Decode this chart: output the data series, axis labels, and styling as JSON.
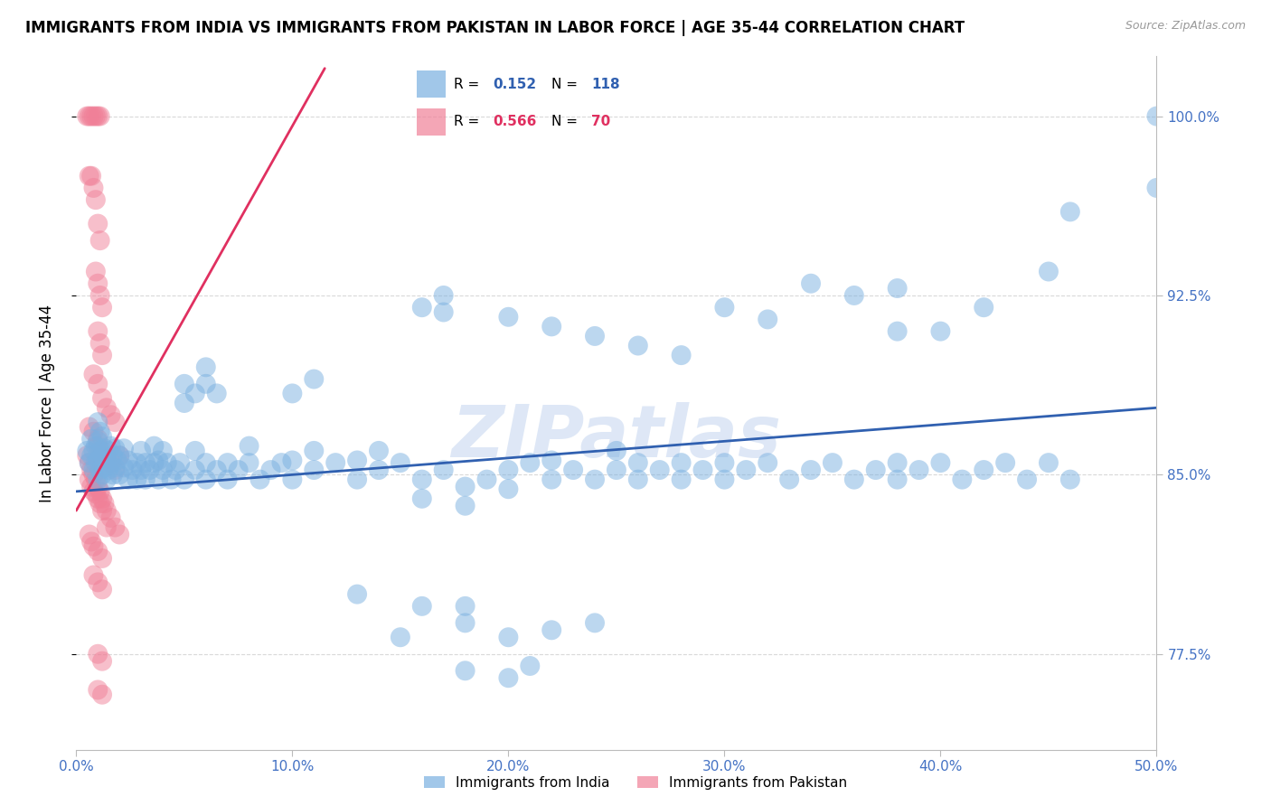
{
  "title": "IMMIGRANTS FROM INDIA VS IMMIGRANTS FROM PAKISTAN IN LABOR FORCE | AGE 35-44 CORRELATION CHART",
  "source": "Source: ZipAtlas.com",
  "ylabel": "In Labor Force | Age 35-44",
  "xlim": [
    0.0,
    0.5
  ],
  "ylim": [
    0.735,
    1.025
  ],
  "xticks": [
    0.0,
    0.1,
    0.2,
    0.3,
    0.4,
    0.5
  ],
  "xticklabels": [
    "0.0%",
    "10.0%",
    "20.0%",
    "30.0%",
    "40.0%",
    "50.0%"
  ],
  "yticks": [
    0.775,
    0.85,
    0.925,
    1.0
  ],
  "yticklabels": [
    "77.5%",
    "85.0%",
    "92.5%",
    "100.0%"
  ],
  "ytick_color": "#4472c4",
  "xtick_color": "#4472c4",
  "grid_color": "#d0d0d0",
  "background_color": "#ffffff",
  "watermark": "ZIPatlas",
  "watermark_color": "#c8d8f0",
  "legend_india_label": "Immigrants from India",
  "legend_pakistan_label": "Immigrants from Pakistan",
  "india_color": "#7ab0e0",
  "pakistan_color": "#f08098",
  "india_r": 0.152,
  "india_n": 118,
  "pakistan_r": 0.566,
  "pakistan_n": 70,
  "india_line_color": "#3060b0",
  "pakistan_line_color": "#e03060",
  "india_line_x": [
    0.0,
    0.5
  ],
  "india_line_y": [
    0.843,
    0.878
  ],
  "pakistan_line_x": [
    0.0,
    0.12
  ],
  "pakistan_line_y": [
    0.835,
    1.02
  ],
  "india_points": [
    [
      0.005,
      0.86
    ],
    [
      0.006,
      0.855
    ],
    [
      0.007,
      0.858
    ],
    [
      0.007,
      0.865
    ],
    [
      0.008,
      0.852
    ],
    [
      0.008,
      0.86
    ],
    [
      0.009,
      0.855
    ],
    [
      0.009,
      0.862
    ],
    [
      0.01,
      0.848
    ],
    [
      0.01,
      0.856
    ],
    [
      0.01,
      0.864
    ],
    [
      0.01,
      0.872
    ],
    [
      0.011,
      0.852
    ],
    [
      0.011,
      0.86
    ],
    [
      0.011,
      0.868
    ],
    [
      0.012,
      0.85
    ],
    [
      0.012,
      0.858
    ],
    [
      0.012,
      0.866
    ],
    [
      0.013,
      0.853
    ],
    [
      0.013,
      0.861
    ],
    [
      0.014,
      0.856
    ],
    [
      0.014,
      0.848
    ],
    [
      0.015,
      0.852
    ],
    [
      0.015,
      0.86
    ],
    [
      0.016,
      0.854
    ],
    [
      0.016,
      0.862
    ],
    [
      0.017,
      0.85
    ],
    [
      0.017,
      0.858
    ],
    [
      0.018,
      0.853
    ],
    [
      0.018,
      0.861
    ],
    [
      0.019,
      0.856
    ],
    [
      0.02,
      0.85
    ],
    [
      0.02,
      0.858
    ],
    [
      0.022,
      0.853
    ],
    [
      0.022,
      0.861
    ],
    [
      0.024,
      0.856
    ],
    [
      0.024,
      0.848
    ],
    [
      0.026,
      0.852
    ],
    [
      0.028,
      0.855
    ],
    [
      0.028,
      0.848
    ],
    [
      0.03,
      0.852
    ],
    [
      0.03,
      0.86
    ],
    [
      0.032,
      0.855
    ],
    [
      0.032,
      0.848
    ],
    [
      0.034,
      0.852
    ],
    [
      0.036,
      0.855
    ],
    [
      0.036,
      0.862
    ],
    [
      0.038,
      0.848
    ],
    [
      0.038,
      0.856
    ],
    [
      0.04,
      0.852
    ],
    [
      0.04,
      0.86
    ],
    [
      0.042,
      0.855
    ],
    [
      0.044,
      0.848
    ],
    [
      0.046,
      0.852
    ],
    [
      0.048,
      0.855
    ],
    [
      0.05,
      0.848
    ],
    [
      0.055,
      0.852
    ],
    [
      0.055,
      0.86
    ],
    [
      0.06,
      0.855
    ],
    [
      0.06,
      0.848
    ],
    [
      0.065,
      0.852
    ],
    [
      0.07,
      0.855
    ],
    [
      0.07,
      0.848
    ],
    [
      0.075,
      0.852
    ],
    [
      0.08,
      0.855
    ],
    [
      0.08,
      0.862
    ],
    [
      0.085,
      0.848
    ],
    [
      0.09,
      0.852
    ],
    [
      0.095,
      0.855
    ],
    [
      0.1,
      0.848
    ],
    [
      0.1,
      0.856
    ],
    [
      0.11,
      0.852
    ],
    [
      0.11,
      0.86
    ],
    [
      0.12,
      0.855
    ],
    [
      0.13,
      0.848
    ],
    [
      0.13,
      0.856
    ],
    [
      0.14,
      0.852
    ],
    [
      0.14,
      0.86
    ],
    [
      0.15,
      0.855
    ],
    [
      0.16,
      0.848
    ],
    [
      0.16,
      0.84
    ],
    [
      0.17,
      0.852
    ],
    [
      0.18,
      0.845
    ],
    [
      0.18,
      0.837
    ],
    [
      0.19,
      0.848
    ],
    [
      0.2,
      0.852
    ],
    [
      0.2,
      0.844
    ],
    [
      0.21,
      0.855
    ],
    [
      0.22,
      0.848
    ],
    [
      0.22,
      0.856
    ],
    [
      0.23,
      0.852
    ],
    [
      0.24,
      0.848
    ],
    [
      0.25,
      0.852
    ],
    [
      0.25,
      0.86
    ],
    [
      0.26,
      0.855
    ],
    [
      0.26,
      0.848
    ],
    [
      0.27,
      0.852
    ],
    [
      0.28,
      0.855
    ],
    [
      0.28,
      0.848
    ],
    [
      0.29,
      0.852
    ],
    [
      0.3,
      0.855
    ],
    [
      0.3,
      0.848
    ],
    [
      0.31,
      0.852
    ],
    [
      0.32,
      0.855
    ],
    [
      0.33,
      0.848
    ],
    [
      0.34,
      0.852
    ],
    [
      0.35,
      0.855
    ],
    [
      0.36,
      0.848
    ],
    [
      0.37,
      0.852
    ],
    [
      0.38,
      0.855
    ],
    [
      0.38,
      0.848
    ],
    [
      0.39,
      0.852
    ],
    [
      0.4,
      0.855
    ],
    [
      0.41,
      0.848
    ],
    [
      0.42,
      0.852
    ],
    [
      0.43,
      0.855
    ],
    [
      0.44,
      0.848
    ],
    [
      0.45,
      0.855
    ],
    [
      0.46,
      0.848
    ],
    [
      0.05,
      0.88
    ],
    [
      0.05,
      0.888
    ],
    [
      0.055,
      0.884
    ],
    [
      0.06,
      0.888
    ],
    [
      0.06,
      0.895
    ],
    [
      0.065,
      0.884
    ],
    [
      0.1,
      0.884
    ],
    [
      0.11,
      0.89
    ],
    [
      0.16,
      0.92
    ],
    [
      0.17,
      0.925
    ],
    [
      0.17,
      0.918
    ],
    [
      0.2,
      0.916
    ],
    [
      0.22,
      0.912
    ],
    [
      0.24,
      0.908
    ],
    [
      0.26,
      0.904
    ],
    [
      0.28,
      0.9
    ],
    [
      0.3,
      0.92
    ],
    [
      0.32,
      0.915
    ],
    [
      0.34,
      0.93
    ],
    [
      0.36,
      0.925
    ],
    [
      0.38,
      0.928
    ],
    [
      0.4,
      0.91
    ],
    [
      0.42,
      0.92
    ],
    [
      0.45,
      0.935
    ],
    [
      0.5,
      1.0
    ],
    [
      0.5,
      0.97
    ],
    [
      0.46,
      0.96
    ],
    [
      0.38,
      0.91
    ],
    [
      0.18,
      0.795
    ],
    [
      0.18,
      0.788
    ],
    [
      0.2,
      0.782
    ],
    [
      0.22,
      0.785
    ],
    [
      0.24,
      0.788
    ],
    [
      0.15,
      0.782
    ],
    [
      0.16,
      0.795
    ],
    [
      0.13,
      0.8
    ],
    [
      0.18,
      0.768
    ],
    [
      0.2,
      0.765
    ],
    [
      0.21,
      0.77
    ]
  ],
  "pakistan_points": [
    [
      0.005,
      1.0
    ],
    [
      0.006,
      1.0
    ],
    [
      0.007,
      1.0
    ],
    [
      0.008,
      1.0
    ],
    [
      0.009,
      1.0
    ],
    [
      0.01,
      1.0
    ],
    [
      0.011,
      1.0
    ],
    [
      0.006,
      0.975
    ],
    [
      0.007,
      0.975
    ],
    [
      0.008,
      0.97
    ],
    [
      0.009,
      0.965
    ],
    [
      0.01,
      0.955
    ],
    [
      0.011,
      0.948
    ],
    [
      0.009,
      0.935
    ],
    [
      0.01,
      0.93
    ],
    [
      0.011,
      0.925
    ],
    [
      0.012,
      0.92
    ],
    [
      0.01,
      0.91
    ],
    [
      0.011,
      0.905
    ],
    [
      0.012,
      0.9
    ],
    [
      0.008,
      0.892
    ],
    [
      0.01,
      0.888
    ],
    [
      0.012,
      0.882
    ],
    [
      0.014,
      0.878
    ],
    [
      0.016,
      0.875
    ],
    [
      0.018,
      0.872
    ],
    [
      0.006,
      0.87
    ],
    [
      0.008,
      0.868
    ],
    [
      0.01,
      0.865
    ],
    [
      0.01,
      0.862
    ],
    [
      0.012,
      0.86
    ],
    [
      0.012,
      0.857
    ],
    [
      0.014,
      0.858
    ],
    [
      0.016,
      0.855
    ],
    [
      0.018,
      0.852
    ],
    [
      0.02,
      0.858
    ],
    [
      0.005,
      0.858
    ],
    [
      0.006,
      0.855
    ],
    [
      0.006,
      0.848
    ],
    [
      0.007,
      0.852
    ],
    [
      0.007,
      0.845
    ],
    [
      0.008,
      0.85
    ],
    [
      0.008,
      0.843
    ],
    [
      0.009,
      0.848
    ],
    [
      0.009,
      0.842
    ],
    [
      0.01,
      0.845
    ],
    [
      0.01,
      0.84
    ],
    [
      0.011,
      0.843
    ],
    [
      0.011,
      0.838
    ],
    [
      0.012,
      0.84
    ],
    [
      0.012,
      0.835
    ],
    [
      0.013,
      0.838
    ],
    [
      0.014,
      0.835
    ],
    [
      0.014,
      0.828
    ],
    [
      0.016,
      0.832
    ],
    [
      0.018,
      0.828
    ],
    [
      0.02,
      0.825
    ],
    [
      0.006,
      0.825
    ],
    [
      0.007,
      0.822
    ],
    [
      0.008,
      0.82
    ],
    [
      0.01,
      0.818
    ],
    [
      0.012,
      0.815
    ],
    [
      0.008,
      0.808
    ],
    [
      0.01,
      0.805
    ],
    [
      0.012,
      0.802
    ],
    [
      0.01,
      0.775
    ],
    [
      0.012,
      0.772
    ],
    [
      0.01,
      0.76
    ],
    [
      0.012,
      0.758
    ]
  ]
}
